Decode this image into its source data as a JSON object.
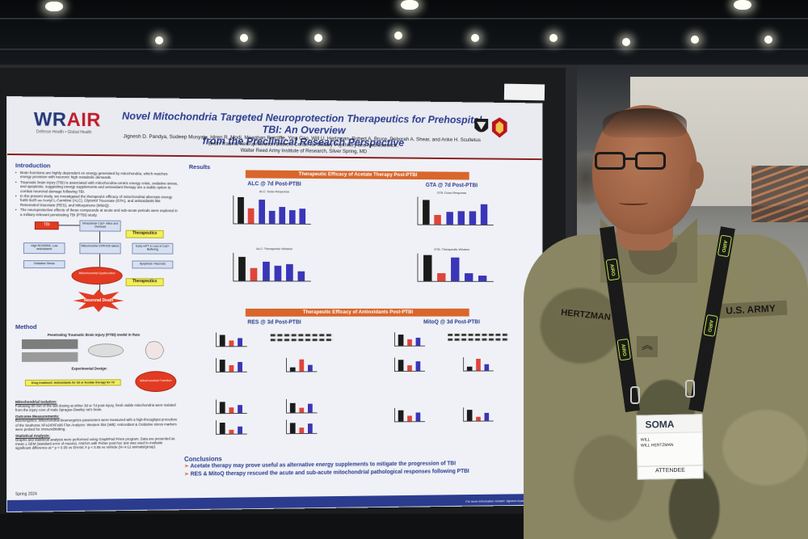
{
  "poster": {
    "logo_main": "WR",
    "logo_accent": "AIR",
    "logo_tagline": "Defense Health • Global Health",
    "title_line1": "Novel Mitochondria Targeted Neuroprotection Therapeutics for Prehospital TBI: An Overview",
    "title_line2": "from the Preclinical Research Perspective",
    "authors": "Jignesh D. Pandya, Sudeep Musyaju, Hiren R. Modi, Meaghan Ratcliffe, Ying Cao, Will U. Hertzman, Robert A. Bruce, Deborah A. Shear, and Anke H. Scultetus",
    "affiliation1": "Brain Trauma Neuroprotection Branch, Center for Military Psychiatry and Neuroscience,",
    "affiliation2": "Walter Reed Army Institute of Research, Silver Spring, MD",
    "introduction": {
      "heading": "Introduction",
      "bullets": [
        "Brain functions are highly dependent on energy generated by mitochondria, which matches energy provision with neurons' high metabolic demands.",
        "Traumatic brain injury (TBI) is associated with mitochondria-centric energy crisis, oxidative stress, and apoptosis, suggesting energy supplements and antioxidant therapy are a viable option to combat neuronal damage following TBI.",
        "In the present study, we investigated the therapeutic efficacy of mitochondrial alternate energy fuels such as Acetyl L-Carnitine (ALC), Glycerol Triacetate (GTA), and antioxidants like Resveratrol triacetate (RES), and Mitoquinone (MitoQ).",
        "The neuroprotective effects of these compounds at acute and sub-acute periods were explored in a military-relevant penetrating TBI (PTBI) study."
      ]
    },
    "flow": {
      "tbi": "TBI",
      "box1": "Intracellular Ca2+ Influx and Overload",
      "therapeutics1": "Therapeutics",
      "box2": "High ROS/RNS, Low antioxidants",
      "box3": "Mitochondria OXPHOS failure",
      "box4": "Early mPT & Loss of Ca2+ Buffering",
      "box5": "Oxidative Stress",
      "box6": "Apoptosis / Necrosis",
      "oval": "Mitochondrial Dysfunction",
      "therapeutics2": "Therapeutics",
      "burst": "Neuronal Death"
    },
    "method": {
      "heading": "Method",
      "model_title": "Penetrating Traumatic Brain Injury (PTBI) model in Rats",
      "design_title": "Experimental Design:",
      "drug_box": "Drug treatment: Antioxidants for 3d or Acetate therapy for 7d",
      "mito_oval": "Mitochondrial Function",
      "isolation_title": "Mitochondrial Isolation:",
      "isolation_text": "Following 60 min of the last dosing at either 3d or 7d post-injury, fresh viable mitochondria were isolated from the injury core of male Sprague-Dawley rat's brain.",
      "outcome_title": "Outcome Measurements:",
      "outcome_text": "Bioenergetics: Mitochondrial bioenergetics parameters were measured with a high-throughput procedure of the Seahorse XFe24/XFe96 Flux Analyzer. Western blot (WB): Antioxidant & Oxidative stress markers were probed for immunoblotting.",
      "stats_title": "Statistical Analysis:",
      "stats_text": "Graphs and statistical analysis were performed using GraphPad Prism program. Data are presented as mean ± SEM (standard error of means). ANOVA with Fisher post-hoc test was used to evaluate significant difference at * p < 0.05 vs SHAM; # p < 0.05 vs Vehicle (N=4-12 animals/group)."
    },
    "results": {
      "heading": "Results",
      "acetate_bar": "Therapeutic Efficacy of Acetate Therapy Post-PTBI",
      "alc_title": "ALC @ 7d Post-PTBI",
      "gta_title": "GTA @ 7d Post-PTBI",
      "alc_dose": "ALC: Dose-Response",
      "gta_dose": "GTA: Dose-Response",
      "alc_window": "ALC: Therapeutic Window",
      "gta_window": "GTA: Therapeutic Window",
      "antiox_bar": "Therapeutic Efficacy of Antioxidants Post-PTBI",
      "res_title": "RES @ 3d Post-PTBI",
      "mitoq_title": "MitoQ @ 3d Post-PTBI"
    },
    "conclusions": {
      "heading": "Conclusions",
      "line1": "Acetate therapy may prove useful as alternative energy supplements to mitigate the progression of TBI",
      "line2": "RES  &  MitoQ therapy rescued the acute and sub-acute mitochondrial pathological responses following PTBI"
    },
    "footer_contact": "For more information contact: Jignesh.d.pandya.civ",
    "season": "Spring 2024"
  },
  "soldier": {
    "nametape": "HERTZMAN",
    "branch_tape": "U.S. ARMY",
    "lanyard_text": "AIRO"
  },
  "badge": {
    "event": "SOMA",
    "name_first": "WILL",
    "name_full": "WILL HERTZMAN",
    "role": "ATTENDEE"
  },
  "colors": {
    "poster_title": "#2b3c8f",
    "section_bar": "#d9662b",
    "alert_red": "#e23b22",
    "therapeutics_yellow": "#f2ee5c",
    "lanyard_green": "#bfe34a"
  }
}
